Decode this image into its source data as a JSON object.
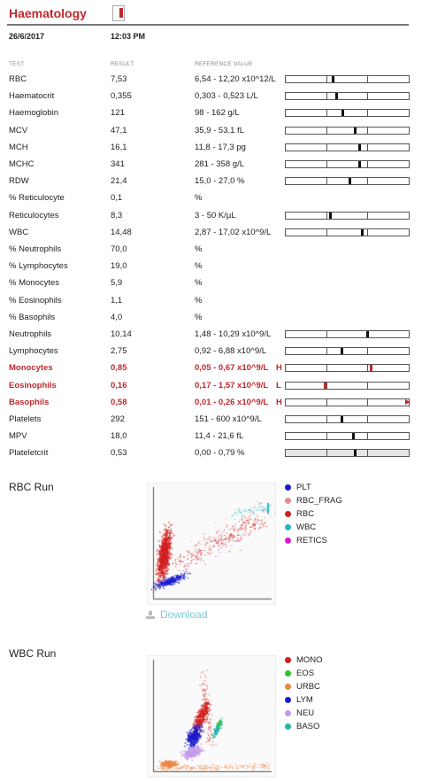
{
  "header": {
    "title": "Haematology",
    "date": "26/6/2017",
    "time": "12:03 PM"
  },
  "columns": {
    "test": "TEST",
    "result": "RESULT",
    "reference": "REFERENCE VALUE"
  },
  "rows": [
    {
      "test": "RBC",
      "result": "7,53",
      "ref": "6,54 - 12,20 x10^12/L",
      "flag": "",
      "bar": true,
      "marker": 0.38
    },
    {
      "test": "Haematocrit",
      "result": "0,355",
      "ref": "0,303 - 0,523 L/L",
      "flag": "",
      "bar": true,
      "marker": 0.41
    },
    {
      "test": "Haemoglobin",
      "result": "121",
      "ref": "98 - 162 g/L",
      "flag": "",
      "bar": true,
      "marker": 0.46
    },
    {
      "test": "MCV",
      "result": "47,1",
      "ref": "35,9 - 53,1 fL",
      "flag": "",
      "bar": true,
      "marker": 0.56
    },
    {
      "test": "MCH",
      "result": "16,1",
      "ref": "11,8 - 17,3 pg",
      "flag": "",
      "bar": true,
      "marker": 0.6
    },
    {
      "test": "MCHC",
      "result": "341",
      "ref": "281 - 358 g/L",
      "flag": "",
      "bar": true,
      "marker": 0.6
    },
    {
      "test": "RDW",
      "result": "21,4",
      "ref": "15,0 - 27,0 %",
      "flag": "",
      "bar": true,
      "marker": 0.52
    },
    {
      "test": "% Reticulocyte",
      "result": "0,1",
      "ref": "%",
      "flag": "",
      "bar": false
    },
    {
      "test": "Reticulocytes",
      "result": "8,3",
      "ref": "3 - 50 K/µL",
      "flag": "",
      "bar": true,
      "marker": 0.36
    },
    {
      "test": "WBC",
      "result": "14,48",
      "ref": "2,87 - 17,02 x10^9/L",
      "flag": "",
      "bar": true,
      "marker": 0.62
    },
    {
      "test": "% Neutrophils",
      "result": "70,0",
      "ref": "%",
      "flag": "",
      "bar": false
    },
    {
      "test": "% Lymphocytes",
      "result": "19,0",
      "ref": "%",
      "flag": "",
      "bar": false
    },
    {
      "test": "% Monocytes",
      "result": "5,9",
      "ref": "%",
      "flag": "",
      "bar": false
    },
    {
      "test": "% Eosinophils",
      "result": "1,1",
      "ref": "%",
      "flag": "",
      "bar": false
    },
    {
      "test": "% Basophils",
      "result": "4,0",
      "ref": "%",
      "flag": "",
      "bar": false
    },
    {
      "test": "Neutrophils",
      "result": "10,14",
      "ref": "1,48 - 10,29 x10^9/L",
      "flag": "",
      "bar": true,
      "marker": 0.66
    },
    {
      "test": "Lymphocytes",
      "result": "2,75",
      "ref": "0,92 - 6,88 x10^9/L",
      "flag": "",
      "bar": true,
      "marker": 0.45
    },
    {
      "test": "Monocytes",
      "result": "0,85",
      "ref": "0,05 - 0,67 x10^9/L",
      "flag": "H",
      "bar": true,
      "marker": 0.69,
      "abnormal": true
    },
    {
      "test": "Eosinophils",
      "result": "0,16",
      "ref": "0,17 - 1,57 x10^9/L",
      "flag": "L",
      "bar": true,
      "marker": 0.32,
      "abnormal": true
    },
    {
      "test": "Basophils",
      "result": "0,58",
      "ref": "0,01 - 0,26 x10^9/L",
      "flag": "H",
      "bar": true,
      "marker": 1.0,
      "abnormal": true
    },
    {
      "test": "Platelets",
      "result": "292",
      "ref": "151 - 600 x10^9/L",
      "flag": "",
      "bar": true,
      "marker": 0.45
    },
    {
      "test": "MPV",
      "result": "18,0",
      "ref": "11,4 - 21,6 fL",
      "flag": "",
      "bar": true,
      "marker": 0.55
    },
    {
      "test": "Plateletcrit",
      "result": "0,53",
      "ref": "0,00 - 0,79 %",
      "flag": "",
      "bar": true,
      "marker": 0.56,
      "shaded": true
    }
  ],
  "rbc_run": {
    "title": "RBC Run",
    "legend": [
      {
        "label": "PLT",
        "color": "#1a1acc"
      },
      {
        "label": "RBC_FRAG",
        "color": "#e88a8a"
      },
      {
        "label": "RBC",
        "color": "#d21f1f"
      },
      {
        "label": "WBC",
        "color": "#22b5c4"
      },
      {
        "label": "RETICS",
        "color": "#d81ad8"
      }
    ]
  },
  "download_label": "Download",
  "wbc_run": {
    "title": "WBC Run",
    "legend": [
      {
        "label": "MONO",
        "color": "#d21f1f"
      },
      {
        "label": "EOS",
        "color": "#2ec32e"
      },
      {
        "label": "URBC",
        "color": "#ee8844"
      },
      {
        "label": "LYM",
        "color": "#1a1acc"
      },
      {
        "label": "NEU",
        "color": "#c39ae8"
      },
      {
        "label": "BASO",
        "color": "#26b5a8"
      }
    ]
  }
}
